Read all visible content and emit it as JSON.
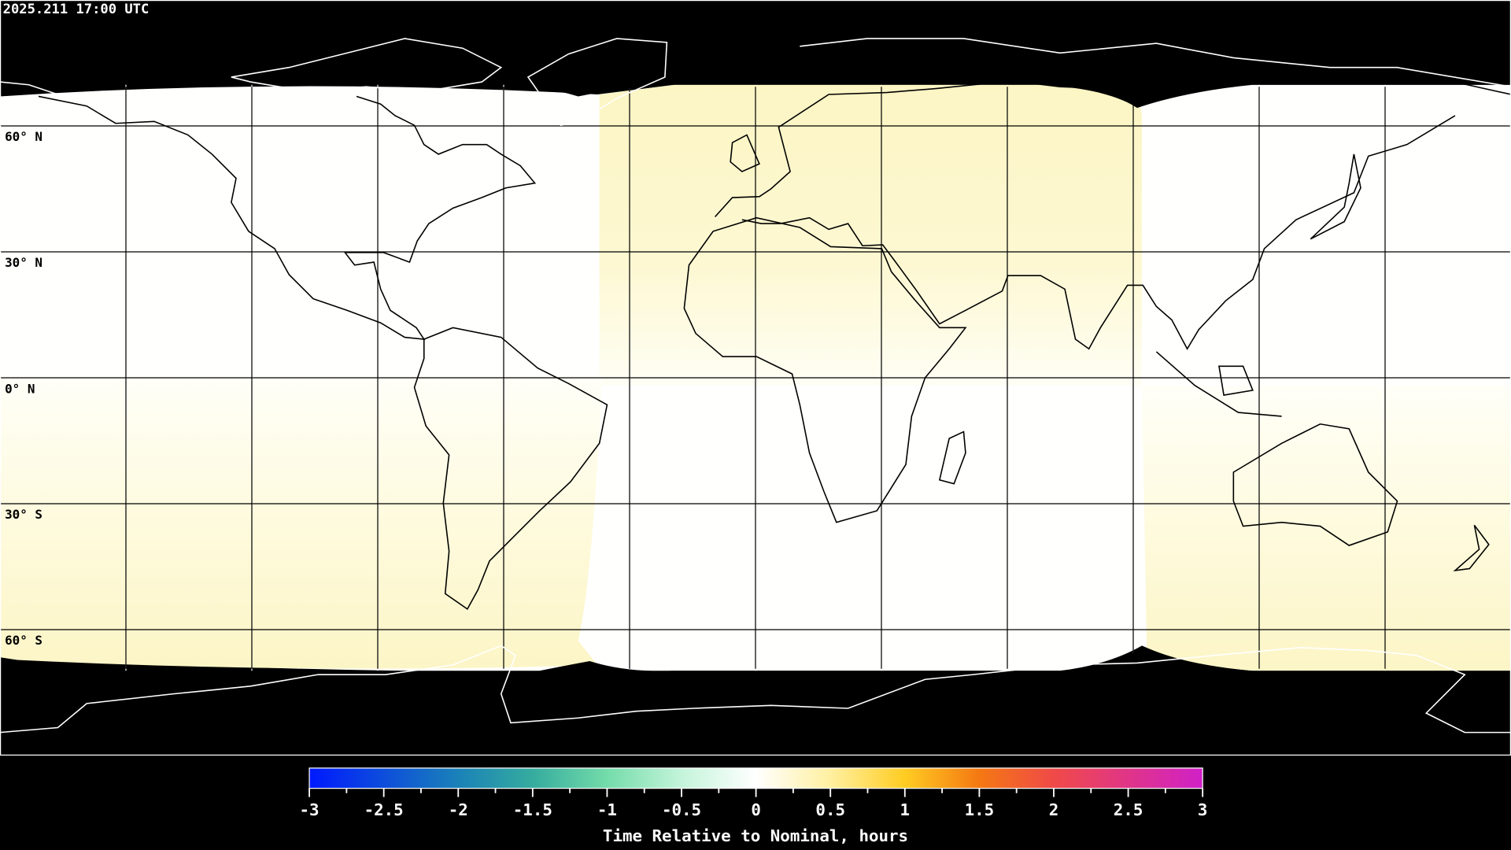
{
  "header": {
    "timestamp": "2025.211 17:00 UTC"
  },
  "map": {
    "projection": "equirectangular",
    "lon_grid_step_deg": 30,
    "lat_grid_step_deg": 30,
    "lat_labels": [
      "60° N",
      "30° N",
      "0° N",
      "30° S",
      "60° S"
    ],
    "colors": {
      "no_data": "#000000",
      "coastline_on_data": "#000000",
      "coastline_on_nodata": "#ffffff",
      "near_zero": "#fffffe",
      "slight_positive": "#fcf6c6"
    }
  },
  "chart_data": {
    "type": "heatmap",
    "title": "2025.211 17:00 UTC",
    "colorbar": {
      "label": "Time Relative to Nominal, hours",
      "range": [
        -3,
        3
      ],
      "ticks": [
        "-3",
        "-2.5",
        "-2",
        "-1.5",
        "-1",
        "-0.5",
        "0",
        "0.5",
        "1",
        "1.5",
        "2",
        "2.5",
        "3"
      ],
      "colormap": [
        {
          "value": -3,
          "color": "#0019ff"
        },
        {
          "value": -2,
          "color": "#1a82b8"
        },
        {
          "value": -1.5,
          "color": "#35ac9e"
        },
        {
          "value": -1,
          "color": "#74dcaa"
        },
        {
          "value": -0.5,
          "color": "#c4f4da"
        },
        {
          "value": 0,
          "color": "#ffffff"
        },
        {
          "value": 0.5,
          "color": "#fff0a0"
        },
        {
          "value": 1,
          "color": "#ffcc22"
        },
        {
          "value": 1.5,
          "color": "#f47812"
        },
        {
          "value": 2,
          "color": "#f04a48"
        },
        {
          "value": 3,
          "color": "#d020c8"
        }
      ]
    },
    "regions": [
      {
        "lon_range": [
          -37,
          91
        ],
        "lat_range": [
          30,
          70
        ],
        "value_hours": 0.15
      },
      {
        "lon_range": [
          -180,
          -37
        ],
        "lat_range": [
          -70,
          0
        ],
        "value_hours": 0.15
      },
      {
        "lon_range": [
          91,
          180
        ],
        "lat_range": [
          -70,
          0
        ],
        "value_hours": 0.15
      },
      {
        "lon_range": [
          -37,
          91
        ],
        "lat_range": [
          -70,
          0
        ],
        "value_hours": 0.0
      },
      {
        "lon_range": [
          -180,
          -37
        ],
        "lat_range": [
          30,
          70
        ],
        "value_hours": 0.0
      },
      {
        "lon_range": [
          91,
          180
        ],
        "lat_range": [
          30,
          70
        ],
        "value_hours": 0.0
      }
    ],
    "no_data_lat_beyond": 70
  }
}
